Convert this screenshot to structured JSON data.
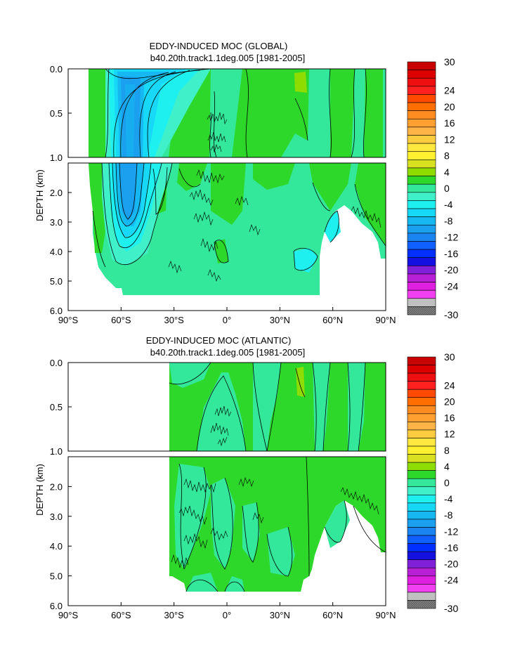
{
  "chart_data": [
    {
      "type": "contour",
      "title": "EDDY-INDUCED MOC (GLOBAL)",
      "subtitle": "b40.20th.track1.1deg.005 [1981-2005]",
      "ylabel": "DEPTH (km)",
      "xlim": [
        -90,
        90
      ],
      "x_ticks": [
        -90,
        -60,
        -30,
        0,
        30,
        60,
        90
      ],
      "x_tick_labels": [
        "90°S",
        "60°S",
        "30°S",
        "0°",
        "30°N",
        "60°N",
        "90°N"
      ],
      "upper_ylim": [
        0.0,
        1.0
      ],
      "upper_y_tick_labels": [
        "0.0",
        "0.5",
        "1.0"
      ],
      "lower_ylim": [
        1.0,
        6.0
      ],
      "lower_y_tick_labels": [
        "2.0",
        "3.0",
        "4.0",
        "5.0",
        "6.0"
      ],
      "ocean_extent": {
        "south_lat": -78,
        "north_lat": 90,
        "max_depth": 5.5
      },
      "features": [
        {
          "name": "Southern Ocean minimum",
          "lat_range": [
            -58,
            -44
          ],
          "min_value": -12
        },
        {
          "name": "Northern positive cell",
          "lat_range": [
            36,
            46
          ],
          "max_value": 4
        }
      ]
    },
    {
      "type": "contour",
      "title": "EDDY-INDUCED MOC (ATLANTIC)",
      "subtitle": "b40.20th.track1.1deg.005 [1981-2005]",
      "ylabel": "DEPTH (km)",
      "xlim": [
        -90,
        90
      ],
      "x_ticks": [
        -90,
        -60,
        -30,
        0,
        30,
        60,
        90
      ],
      "x_tick_labels": [
        "90°S",
        "60°S",
        "30°S",
        "0°",
        "30°N",
        "60°N",
        "90°N"
      ],
      "upper_ylim": [
        0.0,
        1.0
      ],
      "upper_y_tick_labels": [
        "0.0",
        "0.5",
        "1.0"
      ],
      "lower_ylim": [
        1.0,
        6.0
      ],
      "lower_y_tick_labels": [
        "2.0",
        "3.0",
        "4.0",
        "5.0",
        "6.0"
      ],
      "ocean_extent": {
        "south_lat": -33,
        "north_lat": 90,
        "max_depth": 5.5
      },
      "features": [
        {
          "name": "Northern positive cell",
          "lat_range": [
            38,
            45
          ],
          "max_value": 4
        }
      ]
    }
  ],
  "colorbar": {
    "levels": [
      30,
      28,
      26,
      24,
      22,
      20,
      18,
      16,
      14,
      12,
      10,
      8,
      6,
      4,
      2,
      0,
      -2,
      -4,
      -6,
      -8,
      -10,
      -12,
      -14,
      -16,
      -18,
      -20,
      -22,
      -24,
      -26,
      -28,
      -30
    ],
    "labels": [
      "30",
      "24",
      "20",
      "16",
      "12",
      "8",
      "4",
      "0",
      "-4",
      "-8",
      "-12",
      "-16",
      "-20",
      "-24",
      "-30"
    ],
    "colors": [
      "#c80000",
      "#dc0000",
      "#ee1010",
      "#ff2020",
      "#ff4a00",
      "#ff6e00",
      "#ff8c20",
      "#ffa030",
      "#ffb445",
      "#ffcc40",
      "#ffe840",
      "#fff030",
      "#d8e020",
      "#8edc00",
      "#2ed82a",
      "#33e89a",
      "#40f0c8",
      "#1ef0f0",
      "#18d8f8",
      "#16b8f2",
      "#1aa0ee",
      "#1a84f0",
      "#1060ff",
      "#0030ff",
      "#1410e0",
      "#8020d8",
      "#b820d8",
      "#e020e0",
      "#f040f0",
      "#c0c0c0",
      "#808080"
    ]
  }
}
